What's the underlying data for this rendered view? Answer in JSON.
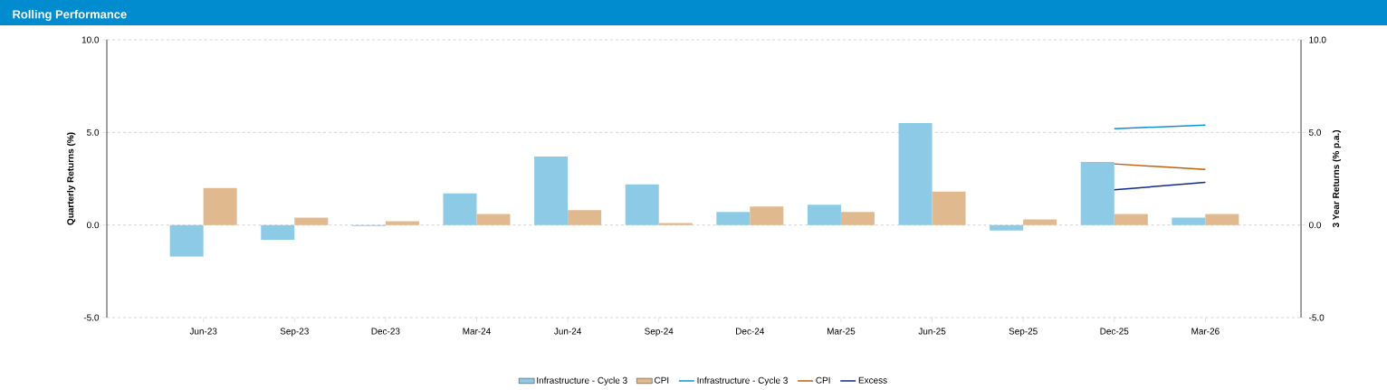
{
  "chart_data": {
    "type": "bar",
    "title": "Rolling Performance",
    "ylabel": "Quarterly Returns (%)",
    "y2label": "3 Year Returns (% p.a.)",
    "categories": [
      "Jun-23",
      "Sep-23",
      "Dec-23",
      "Mar-24",
      "Jun-24",
      "Sep-24",
      "Dec-24",
      "Mar-25",
      "Jun-25",
      "Sep-25",
      "Dec-25",
      "Mar-26"
    ],
    "series": [
      {
        "name": "Infrastructure - Cycle 3",
        "color": "#8ccae6",
        "values": [
          -1.7,
          -0.8,
          -0.05,
          1.7,
          3.7,
          2.2,
          0.7,
          1.1,
          5.5,
          -0.3,
          3.4,
          0.4
        ]
      },
      {
        "name": "CPI",
        "color": "#e1b98f",
        "values": [
          2.0,
          0.4,
          0.2,
          0.6,
          0.8,
          0.1,
          1.0,
          0.7,
          1.8,
          0.3,
          0.6,
          0.6
        ]
      },
      {
        "name": "Infrastructure - Cycle 3",
        "type": "line",
        "axis": "y2",
        "color": "#0f8fd6",
        "values": [
          null,
          null,
          null,
          null,
          null,
          null,
          null,
          null,
          null,
          null,
          5.2,
          5.4
        ]
      },
      {
        "name": "CPI",
        "type": "line",
        "axis": "y2",
        "color": "#c0600a",
        "values": [
          null,
          null,
          null,
          null,
          null,
          null,
          null,
          null,
          null,
          null,
          3.3,
          3.0
        ]
      },
      {
        "name": "Excess",
        "type": "line",
        "axis": "y2",
        "color": "#0d2a8c",
        "values": [
          null,
          null,
          null,
          null,
          null,
          null,
          null,
          null,
          null,
          null,
          1.9,
          2.3
        ]
      }
    ],
    "ylim": [
      -5,
      10
    ],
    "yticks": [
      {
        "value": -5,
        "label": "-5.0"
      },
      {
        "value": 0,
        "label": "0.0"
      },
      {
        "value": 5,
        "label": "5.0"
      },
      {
        "value": 10,
        "label": "10.0"
      }
    ],
    "y2lim": [
      -5,
      10
    ],
    "y2ticks": [
      {
        "value": -5,
        "label": "-5.0"
      },
      {
        "value": 0,
        "label": "0.0"
      },
      {
        "value": 5,
        "label": "5.0"
      },
      {
        "value": 10,
        "label": "10.0"
      }
    ],
    "grid": "y",
    "legend": "bottom",
    "marker": "none",
    "line_style": "solid"
  }
}
